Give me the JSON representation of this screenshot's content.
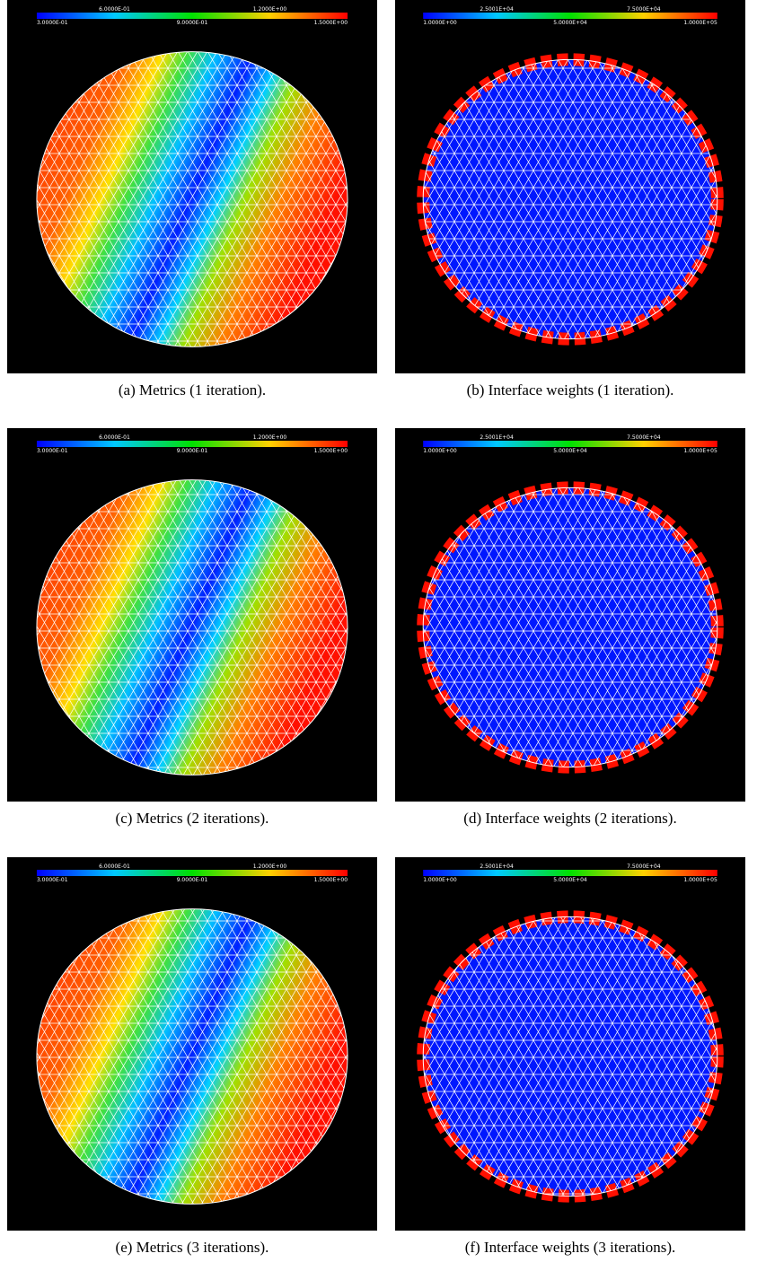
{
  "panels": [
    {
      "caption": "(a) Metrics (1 iteration).",
      "colorbar": {
        "top": [
          "6.0000E-01",
          "1.2000E+00"
        ],
        "bottom": [
          "3.0000E-01",
          "9.0000E-01",
          "1.5000E+00"
        ]
      }
    },
    {
      "caption": "(b) Interface weights (1 iteration).",
      "colorbar": {
        "top": [
          "2.5001E+04",
          "7.5000E+04"
        ],
        "bottom": [
          "1.0000E+00",
          "5.0000E+04",
          "1.0000E+05"
        ]
      }
    },
    {
      "caption": "(c) Metrics (2 iterations).",
      "colorbar": {
        "top": [
          "6.0000E-01",
          "1.2000E+00"
        ],
        "bottom": [
          "3.0000E-01",
          "9.0000E-01",
          "1.5000E+00"
        ]
      }
    },
    {
      "caption": "(d) Interface weights (2 iterations).",
      "colorbar": {
        "top": [
          "2.5001E+04",
          "7.5000E+04"
        ],
        "bottom": [
          "1.0000E+00",
          "5.0000E+04",
          "1.0000E+05"
        ]
      }
    },
    {
      "caption": "(e) Metrics (3 iterations).",
      "colorbar": {
        "top": [
          "6.0000E-01",
          "1.2000E+00"
        ],
        "bottom": [
          "3.0000E-01",
          "9.0000E-01",
          "1.5000E+00"
        ]
      }
    },
    {
      "caption": "(f) Interface weights (3 iterations).",
      "colorbar": {
        "top": [
          "2.5001E+04",
          "7.5000E+04"
        ],
        "bottom": [
          "1.0000E+00",
          "5.0000E+04",
          "1.0000E+05"
        ]
      }
    }
  ]
}
